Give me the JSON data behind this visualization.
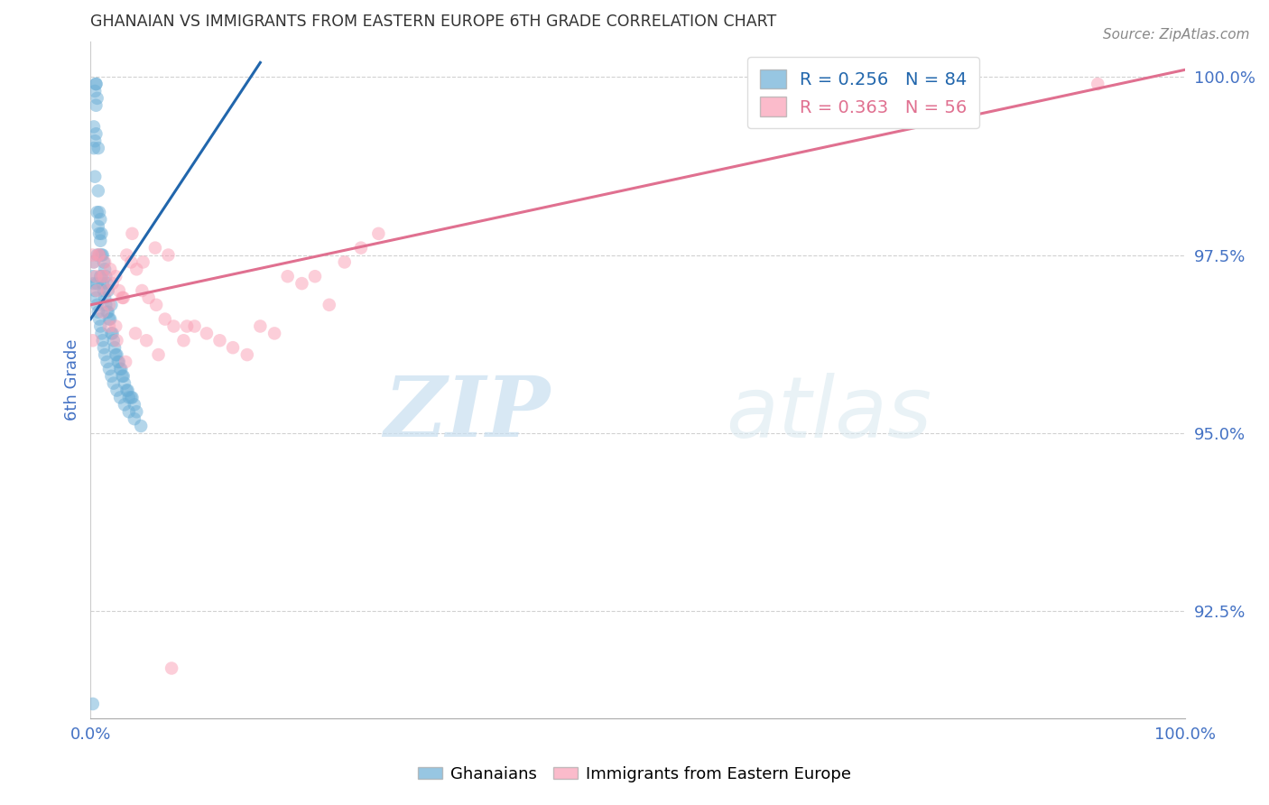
{
  "title": "GHANAIAN VS IMMIGRANTS FROM EASTERN EUROPE 6TH GRADE CORRELATION CHART",
  "source": "Source: ZipAtlas.com",
  "ylabel": "6th Grade",
  "xlim": [
    0.0,
    1.0
  ],
  "ylim": [
    0.91,
    1.005
  ],
  "yticks": [
    0.925,
    0.95,
    0.975,
    1.0
  ],
  "ytick_labels": [
    "92.5%",
    "95.0%",
    "97.5%",
    "100.0%"
  ],
  "xticks": [
    0.0,
    0.2,
    0.4,
    0.6,
    0.8,
    1.0
  ],
  "xtick_labels": [
    "0.0%",
    "",
    "",
    "",
    "",
    "100.0%"
  ],
  "blue_R": 0.256,
  "blue_N": 84,
  "pink_R": 0.363,
  "pink_N": 56,
  "legend_label_blue": "Ghanaians",
  "legend_label_pink": "Immigrants from Eastern Europe",
  "blue_color": "#6baed6",
  "pink_color": "#fa9fb5",
  "blue_line_color": "#2166ac",
  "pink_line_color": "#e07090",
  "watermark_zip": "ZIP",
  "watermark_atlas": "atlas",
  "title_color": "#333333",
  "axis_label_color": "#4472c4",
  "tick_color": "#4472c4",
  "blue_x": [
    0.002,
    0.003,
    0.003,
    0.004,
    0.004,
    0.004,
    0.005,
    0.005,
    0.005,
    0.005,
    0.006,
    0.006,
    0.006,
    0.007,
    0.007,
    0.007,
    0.008,
    0.008,
    0.008,
    0.009,
    0.009,
    0.009,
    0.01,
    0.01,
    0.01,
    0.011,
    0.011,
    0.012,
    0.012,
    0.013,
    0.013,
    0.014,
    0.014,
    0.015,
    0.015,
    0.016,
    0.016,
    0.017,
    0.018,
    0.019,
    0.019,
    0.02,
    0.021,
    0.022,
    0.023,
    0.024,
    0.025,
    0.026,
    0.027,
    0.028,
    0.029,
    0.03,
    0.031,
    0.033,
    0.034,
    0.035,
    0.037,
    0.038,
    0.04,
    0.042,
    0.002,
    0.003,
    0.003,
    0.004,
    0.005,
    0.006,
    0.006,
    0.007,
    0.008,
    0.009,
    0.01,
    0.011,
    0.012,
    0.013,
    0.015,
    0.017,
    0.019,
    0.021,
    0.024,
    0.027,
    0.031,
    0.035,
    0.04,
    0.046
  ],
  "blue_y": [
    0.912,
    0.99,
    0.993,
    0.986,
    0.991,
    0.998,
    0.992,
    0.996,
    0.999,
    0.999,
    0.975,
    0.981,
    0.997,
    0.979,
    0.984,
    0.99,
    0.975,
    0.981,
    0.978,
    0.972,
    0.977,
    0.98,
    0.972,
    0.975,
    0.978,
    0.971,
    0.975,
    0.97,
    0.974,
    0.969,
    0.973,
    0.968,
    0.972,
    0.967,
    0.971,
    0.967,
    0.97,
    0.966,
    0.966,
    0.964,
    0.968,
    0.964,
    0.963,
    0.962,
    0.961,
    0.961,
    0.96,
    0.96,
    0.959,
    0.959,
    0.958,
    0.958,
    0.957,
    0.956,
    0.956,
    0.955,
    0.955,
    0.955,
    0.954,
    0.953,
    0.972,
    0.971,
    0.974,
    0.97,
    0.969,
    0.968,
    0.971,
    0.967,
    0.966,
    0.965,
    0.964,
    0.963,
    0.962,
    0.961,
    0.96,
    0.959,
    0.958,
    0.957,
    0.956,
    0.955,
    0.954,
    0.953,
    0.952,
    0.951
  ],
  "pink_x": [
    0.002,
    0.005,
    0.008,
    0.01,
    0.013,
    0.015,
    0.018,
    0.02,
    0.023,
    0.026,
    0.029,
    0.033,
    0.037,
    0.042,
    0.047,
    0.053,
    0.06,
    0.068,
    0.076,
    0.085,
    0.095,
    0.106,
    0.118,
    0.13,
    0.143,
    0.155,
    0.168,
    0.18,
    0.193,
    0.205,
    0.218,
    0.232,
    0.247,
    0.263,
    0.003,
    0.007,
    0.012,
    0.017,
    0.023,
    0.03,
    0.038,
    0.048,
    0.059,
    0.071,
    0.002,
    0.006,
    0.011,
    0.017,
    0.024,
    0.032,
    0.041,
    0.051,
    0.062,
    0.074,
    0.088,
    0.92
  ],
  "pink_y": [
    0.963,
    0.972,
    0.975,
    0.972,
    0.974,
    0.97,
    0.973,
    0.971,
    0.972,
    0.97,
    0.969,
    0.975,
    0.974,
    0.973,
    0.97,
    0.969,
    0.968,
    0.966,
    0.965,
    0.963,
    0.965,
    0.964,
    0.963,
    0.962,
    0.961,
    0.965,
    0.964,
    0.972,
    0.971,
    0.972,
    0.968,
    0.974,
    0.976,
    0.978,
    0.974,
    0.975,
    0.972,
    0.968,
    0.965,
    0.969,
    0.978,
    0.974,
    0.976,
    0.975,
    0.975,
    0.97,
    0.967,
    0.965,
    0.963,
    0.96,
    0.964,
    0.963,
    0.961,
    0.917,
    0.965,
    0.999
  ]
}
